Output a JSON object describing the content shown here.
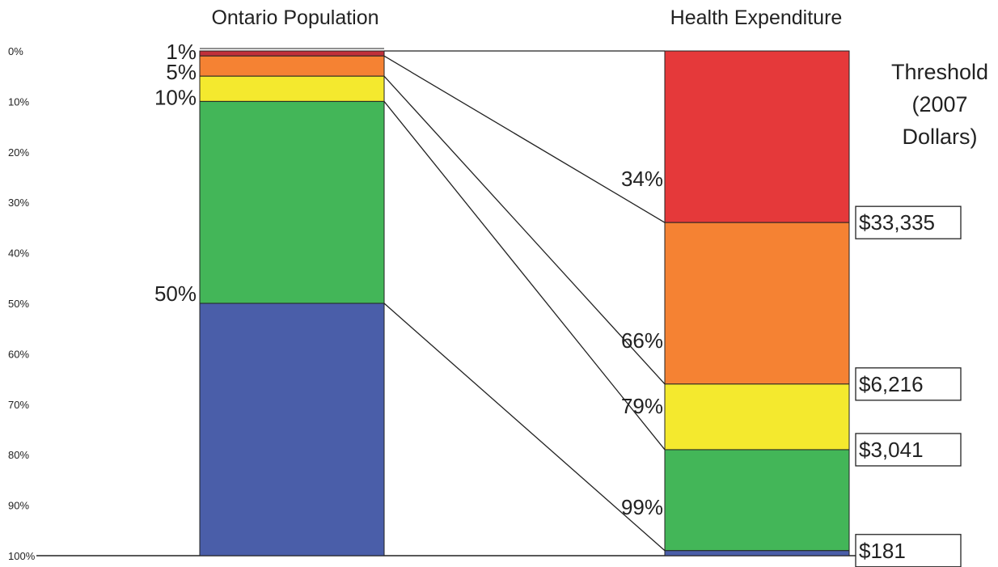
{
  "chart_data": {
    "type": "bar",
    "ylim": [
      0,
      100
    ],
    "y_ticks": [
      "0%",
      "10%",
      "20%",
      "30%",
      "40%",
      "50%",
      "60%",
      "70%",
      "80%",
      "90%",
      "100%"
    ],
    "grid": false,
    "columns": [
      {
        "title": "Ontario Population",
        "segments": [
          {
            "from": 0,
            "to": 1,
            "color": "#c0303a"
          },
          {
            "from": 1,
            "to": 5,
            "color": "#f58233"
          },
          {
            "from": 5,
            "to": 10,
            "color": "#f4e92e"
          },
          {
            "from": 10,
            "to": 50,
            "color": "#43b658"
          },
          {
            "from": 50,
            "to": 100,
            "color": "#4a5ea9"
          }
        ],
        "boundary_labels": [
          {
            "at": 1,
            "text": "1%"
          },
          {
            "at": 5,
            "text": "5%"
          },
          {
            "at": 10,
            "text": "10%"
          },
          {
            "at": 50,
            "text": "50%"
          }
        ]
      },
      {
        "title": "Health Expenditure",
        "segments": [
          {
            "from": 0,
            "to": 34,
            "color": "#e5393a"
          },
          {
            "from": 34,
            "to": 66,
            "color": "#f58233"
          },
          {
            "from": 66,
            "to": 79,
            "color": "#f4e92e"
          },
          {
            "from": 79,
            "to": 99,
            "color": "#43b658"
          },
          {
            "from": 99,
            "to": 100,
            "color": "#4a5ea9"
          }
        ],
        "boundary_labels": [
          {
            "at": 34,
            "text": "34%"
          },
          {
            "at": 66,
            "text": "66%"
          },
          {
            "at": 79,
            "text": "79%"
          },
          {
            "at": 99,
            "text": "99%"
          }
        ]
      }
    ],
    "connectors": [
      {
        "from": 0,
        "to": 0
      },
      {
        "from": 1,
        "to": 34
      },
      {
        "from": 5,
        "to": 66
      },
      {
        "from": 10,
        "to": 79
      },
      {
        "from": 50,
        "to": 99
      }
    ],
    "threshold": {
      "title_lines": [
        "Threshold",
        "(2007",
        "Dollars)"
      ],
      "values": [
        {
          "at": 34,
          "text": "$33,335"
        },
        {
          "at": 66,
          "text": "$6,216"
        },
        {
          "at": 79,
          "text": "$3,041"
        },
        {
          "at": 99,
          "text": "$181"
        }
      ]
    }
  }
}
